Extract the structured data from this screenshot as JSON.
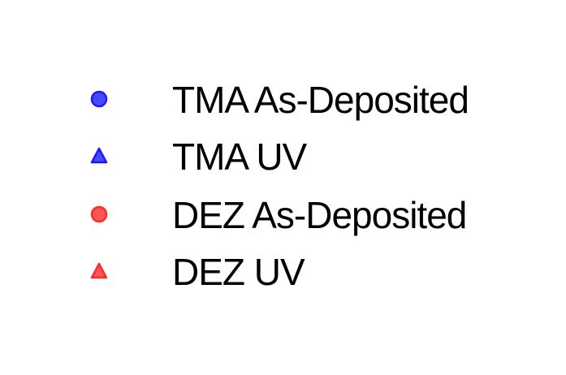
{
  "chart_data": {
    "type": "scatter",
    "title": "",
    "xlabel": "",
    "ylabel": "",
    "grid": false,
    "axes_visible": false,
    "legend_placement": "center",
    "series": [
      {
        "name": "TMA As-Deposited",
        "marker": "circle",
        "color": "#1a1aff"
      },
      {
        "name": "TMA UV",
        "marker": "triangle",
        "color": "#1a1aff"
      },
      {
        "name": "DEZ As-Deposited",
        "marker": "circle",
        "color": "#ff2a2a"
      },
      {
        "name": "DEZ UV",
        "marker": "triangle",
        "color": "#ff2a2a"
      }
    ]
  }
}
